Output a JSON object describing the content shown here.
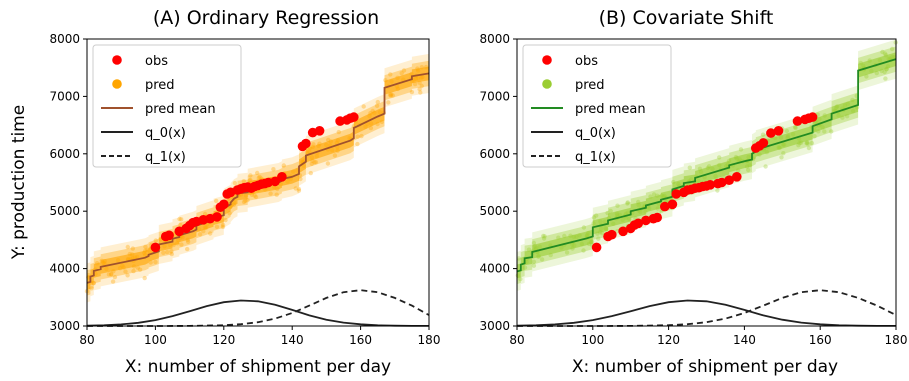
{
  "shared": {
    "ylabel": "Y: production time",
    "xlabel": "X: number of shipment per day",
    "xlim": [
      80,
      180
    ],
    "ylim": [
      3000,
      8000
    ],
    "xticks": [
      80,
      100,
      120,
      140,
      160,
      180
    ],
    "yticks": [
      3000,
      4000,
      5000,
      6000,
      7000,
      8000
    ],
    "colors": {
      "obs": "#ff0000",
      "q_lines": "#222222"
    }
  },
  "chart_data": [
    {
      "type": "scatter",
      "title": "(A) Ordinary Regression",
      "xlabel": "X: number of shipment per day",
      "ylabel": "Y: production time",
      "xlim": [
        80,
        180
      ],
      "ylim": [
        3000,
        8000
      ],
      "grid": false,
      "legend_position": "top-left",
      "colors": {
        "pred": "#ffa500",
        "pred_mean": "#a0522d"
      },
      "legend": [
        "obs",
        "pred",
        "pred mean",
        "q_0(x)",
        "q_1(x)"
      ],
      "series": [
        {
          "name": "obs",
          "kind": "scatter",
          "x": [
            100,
            103,
            104,
            107,
            109,
            110,
            111,
            112,
            114,
            116,
            118,
            119,
            120,
            121,
            122,
            124,
            125,
            126,
            127,
            128,
            129,
            130,
            131,
            132,
            133,
            135,
            137,
            143,
            144,
            146,
            148,
            154,
            156,
            157,
            158
          ],
          "y": [
            4370,
            4560,
            4580,
            4650,
            4700,
            4750,
            4800,
            4820,
            4850,
            4870,
            4900,
            5070,
            5120,
            5300,
            5330,
            5370,
            5390,
            5410,
            5420,
            5400,
            5430,
            5450,
            5470,
            5480,
            5500,
            5520,
            5600,
            6130,
            6180,
            6370,
            6400,
            6570,
            6590,
            6620,
            6640
          ]
        },
        {
          "name": "pred mean",
          "kind": "line",
          "x": [
            80,
            81,
            81,
            82,
            82,
            84,
            84,
            97,
            98,
            98,
            100,
            101,
            101,
            105,
            105,
            107,
            107,
            111,
            112,
            112,
            117,
            117,
            120,
            120,
            122,
            122,
            123,
            124,
            124,
            127,
            127,
            136,
            137,
            137,
            140,
            142,
            142,
            144,
            144,
            157,
            158,
            158,
            165,
            167,
            167,
            175,
            175,
            180
          ],
          "y": [
            3750,
            3770,
            3860,
            3880,
            3960,
            3990,
            4030,
            4190,
            4220,
            4240,
            4280,
            4300,
            4420,
            4470,
            4520,
            4550,
            4580,
            4650,
            4680,
            4750,
            4850,
            4880,
            4930,
            5050,
            5120,
            5150,
            5220,
            5250,
            5310,
            5330,
            5400,
            5500,
            5530,
            5560,
            5600,
            5650,
            5780,
            5860,
            5970,
            6230,
            6270,
            6450,
            6650,
            6700,
            7150,
            7300,
            7350,
            7400
          ]
        },
        {
          "name": "q_0(x)",
          "kind": "line",
          "style": "solid",
          "x": [
            80,
            85,
            90,
            95,
            100,
            105,
            110,
            115,
            120,
            125,
            130,
            135,
            140,
            145,
            150,
            155,
            160,
            165,
            170,
            175,
            180
          ],
          "y": [
            3006,
            3013,
            3028,
            3056,
            3103,
            3172,
            3258,
            3346,
            3414,
            3444,
            3430,
            3370,
            3280,
            3185,
            3110,
            3060,
            3030,
            3013,
            3005,
            3002,
            3001
          ]
        },
        {
          "name": "q_1(x)",
          "kind": "line",
          "style": "dashed",
          "x": [
            80,
            90,
            100,
            110,
            120,
            125,
            130,
            135,
            140,
            145,
            150,
            155,
            160,
            165,
            170,
            175,
            180
          ],
          "y": [
            3000,
            3000,
            3000,
            3002,
            3014,
            3031,
            3066,
            3129,
            3227,
            3355,
            3489,
            3589,
            3623,
            3589,
            3489,
            3355,
            3190
          ]
        }
      ]
    },
    {
      "type": "scatter",
      "title": "(B) Covariate Shift",
      "xlabel": "X: number of shipment per day",
      "ylabel": "Y: production time",
      "xlim": [
        80,
        180
      ],
      "ylim": [
        3000,
        8000
      ],
      "grid": false,
      "legend_position": "top-left",
      "colors": {
        "pred": "#9acd32",
        "pred_mean": "#228b22"
      },
      "legend": [
        "obs",
        "pred",
        "pred mean",
        "q_0(x)",
        "q_1(x)"
      ],
      "series": [
        {
          "name": "obs",
          "kind": "scatter",
          "x": [
            101,
            104,
            105,
            108,
            110,
            111,
            112,
            114,
            116,
            117,
            119,
            121,
            122,
            124,
            125,
            126,
            127,
            128,
            129,
            130,
            131,
            133,
            134,
            136,
            138,
            143,
            144,
            145,
            147,
            149,
            154,
            156,
            157,
            158
          ],
          "y": [
            4370,
            4560,
            4590,
            4650,
            4700,
            4760,
            4790,
            4840,
            4870,
            4890,
            5080,
            5120,
            5300,
            5330,
            5370,
            5380,
            5400,
            5410,
            5430,
            5440,
            5460,
            5480,
            5500,
            5540,
            5600,
            6100,
            6140,
            6190,
            6360,
            6400,
            6570,
            6600,
            6620,
            6640
          ]
        },
        {
          "name": "pred mean",
          "kind": "line",
          "x": [
            80,
            81,
            81,
            82,
            82,
            84,
            84,
            98,
            100,
            100,
            104,
            104,
            110,
            110,
            114,
            114,
            118,
            118,
            121,
            121,
            124,
            124,
            127,
            127,
            136,
            136,
            140,
            142,
            142,
            143,
            143,
            158,
            158,
            163,
            163,
            170,
            170,
            180
          ],
          "y": [
            3950,
            3970,
            4070,
            4090,
            4180,
            4200,
            4290,
            4520,
            4560,
            4720,
            4780,
            4840,
            4940,
            5000,
            5060,
            5100,
            5170,
            5200,
            5250,
            5380,
            5440,
            5490,
            5520,
            5580,
            5760,
            5800,
            5870,
            5900,
            6000,
            6040,
            6070,
            6370,
            6480,
            6600,
            6700,
            6850,
            7450,
            7650
          ]
        },
        {
          "name": "q_0(x)",
          "kind": "line",
          "style": "solid",
          "x": [
            80,
            85,
            90,
            95,
            100,
            105,
            110,
            115,
            120,
            125,
            130,
            135,
            140,
            145,
            150,
            155,
            160,
            165,
            170,
            175,
            180
          ],
          "y": [
            3006,
            3013,
            3028,
            3056,
            3103,
            3172,
            3258,
            3346,
            3414,
            3444,
            3430,
            3370,
            3280,
            3185,
            3110,
            3060,
            3030,
            3013,
            3005,
            3002,
            3001
          ]
        },
        {
          "name": "q_1(x)",
          "kind": "line",
          "style": "dashed",
          "x": [
            80,
            90,
            100,
            110,
            120,
            125,
            130,
            135,
            140,
            145,
            150,
            155,
            160,
            165,
            170,
            175,
            180
          ],
          "y": [
            3000,
            3000,
            3000,
            3002,
            3014,
            3031,
            3066,
            3129,
            3227,
            3355,
            3489,
            3589,
            3623,
            3589,
            3489,
            3355,
            3190
          ]
        }
      ]
    }
  ]
}
